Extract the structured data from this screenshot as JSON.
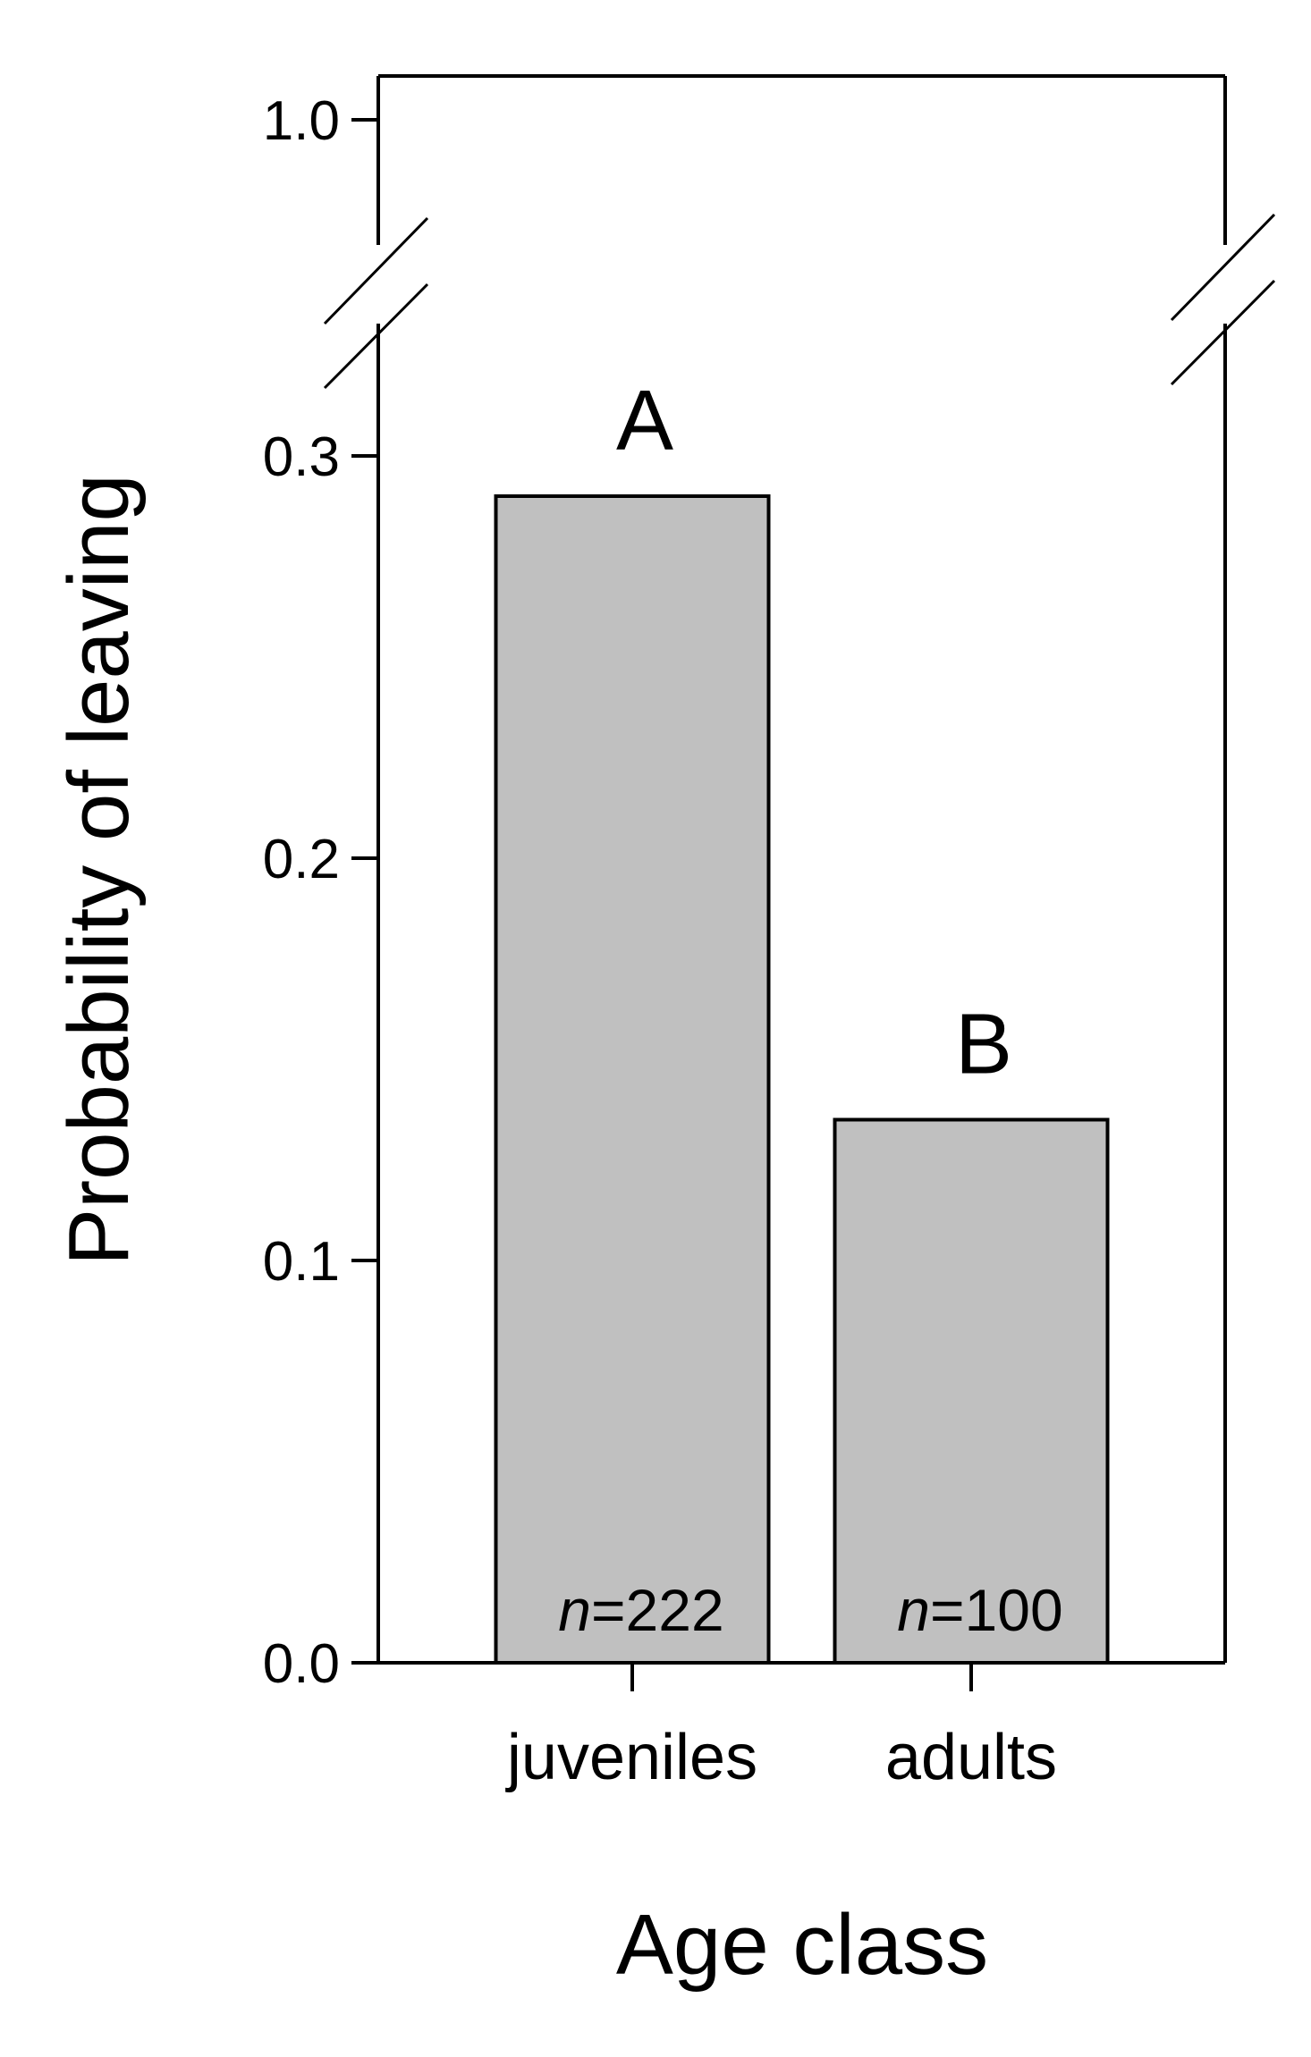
{
  "chart_data": {
    "type": "bar",
    "categories": [
      "juveniles",
      "adults"
    ],
    "values": [
      0.29,
      0.135
    ],
    "xlabel": "Age class",
    "ylabel": "Probability of leaving",
    "ylim": [
      0,
      1.0
    ],
    "axis_break": {
      "from": 0.3,
      "to": 1.0
    },
    "yticks": [
      "0.0",
      "0.1",
      "0.2",
      "0.3",
      "1.0"
    ],
    "significance_letters": [
      "A",
      "B"
    ],
    "sample_sizes": [
      {
        "prefix": "n",
        "value": "=222"
      },
      {
        "prefix": "n",
        "value": "=100"
      }
    ],
    "bar_color": "#c0c0c0",
    "grid": false,
    "legend": "none"
  }
}
